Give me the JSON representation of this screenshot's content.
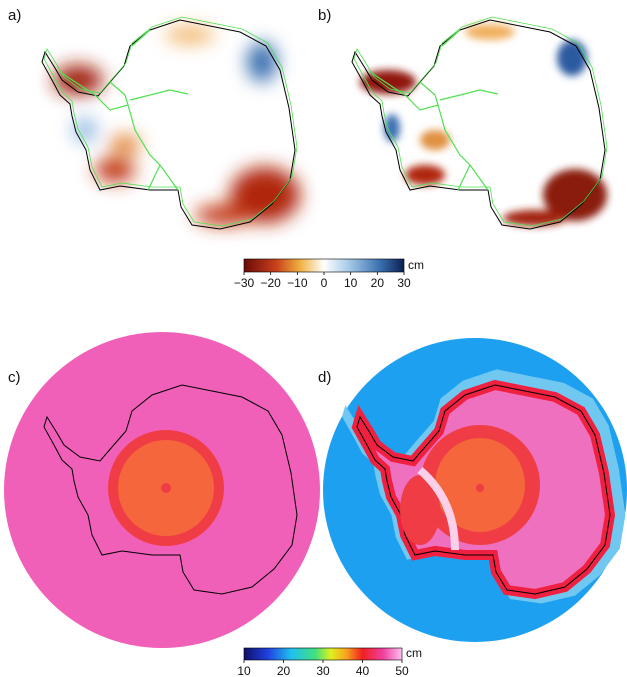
{
  "panels": [
    {
      "label": "a)"
    },
    {
      "label": "b)"
    },
    {
      "label": "c)"
    },
    {
      "label": "d)"
    }
  ],
  "colorbars": [
    {
      "unit": "cm",
      "ticks": [
        "−30",
        "−20",
        "−10",
        "0",
        "10",
        "20",
        "30"
      ]
    },
    {
      "unit": "cm",
      "ticks": [
        "10",
        "20",
        "30",
        "40",
        "50"
      ]
    }
  ]
}
